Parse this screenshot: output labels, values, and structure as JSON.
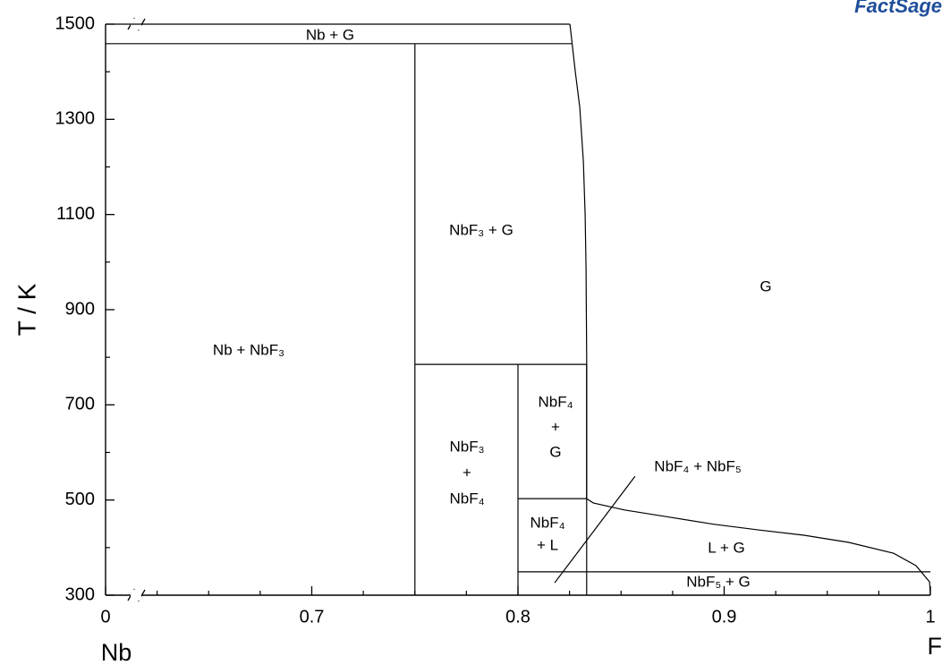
{
  "chart_data": {
    "type": "phase_diagram",
    "logo": "FactSage",
    "y_label": "T / K",
    "x_left_label": "Nb",
    "x_right_label": "F",
    "xlim": [
      0,
      1
    ],
    "x_break": [
      0,
      0.6
    ],
    "xticks": [
      0,
      0.7,
      0.8,
      0.9,
      1
    ],
    "xminorticks": [
      0.625,
      0.65,
      0.675,
      0.725,
      0.75,
      0.775,
      0.825,
      0.85,
      0.875,
      0.925,
      0.95,
      0.975
    ],
    "ylim": [
      300,
      1500
    ],
    "yticks": [
      300,
      500,
      700,
      900,
      1100,
      1300,
      1500
    ],
    "yminorticks": [
      400,
      600,
      800,
      1000,
      1200,
      1400
    ],
    "lines": [
      {
        "x": [
          0,
          0.8262
        ],
        "y": [
          1459,
          1459
        ]
      },
      {
        "x": [
          0,
          0.8252
        ],
        "y": [
          1500,
          1500
        ]
      },
      {
        "x": [
          0.75,
          0.75
        ],
        "y": [
          1459,
          300
        ]
      },
      {
        "x": [
          0.75,
          0.8333
        ],
        "y": [
          785,
          785
        ]
      },
      {
        "x": [
          0.8,
          0.8
        ],
        "y": [
          785,
          300
        ]
      },
      {
        "x": [
          0.8333,
          0.8333
        ],
        "y": [
          785,
          300
        ]
      },
      {
        "x": [
          0.8,
          0.8333
        ],
        "y": [
          503,
          503
        ]
      },
      {
        "x": [
          0.8,
          1
        ],
        "y": [
          349,
          349
        ]
      },
      {
        "x": [
          0.8252,
          0.8278,
          0.83,
          0.8317,
          0.8326,
          0.833,
          0.8333,
          0.8333
        ],
        "y": [
          1500,
          1400,
          1325,
          1212,
          1099,
          986,
          798,
          503
        ]
      },
      {
        "x": [
          0.8333,
          0.8365,
          0.8517,
          0.8735,
          0.8952,
          0.917,
          0.9387,
          0.9604,
          0.9822,
          0.993,
          0.9996,
          1
        ],
        "y": [
          503,
          494,
          479,
          464,
          449,
          437,
          426,
          411,
          388,
          362,
          328,
          300
        ]
      },
      {
        "x": [
          0.8178,
          0.8568
        ],
        "y": [
          326,
          550
        ]
      }
    ],
    "regions": [
      [
        "Nb + G"
      ],
      [
        "Nb + NbF₃"
      ],
      [
        "NbF₃ + G"
      ],
      [
        "G"
      ],
      [
        "NbF₃",
        "+",
        "NbF₄"
      ],
      [
        "NbF₄",
        "+",
        "G"
      ],
      [
        "NbF₄ + NbF₅"
      ],
      [
        "NbF₄",
        "+ L"
      ],
      [
        "L + G"
      ],
      [
        "NbF₅ + G"
      ]
    ]
  }
}
